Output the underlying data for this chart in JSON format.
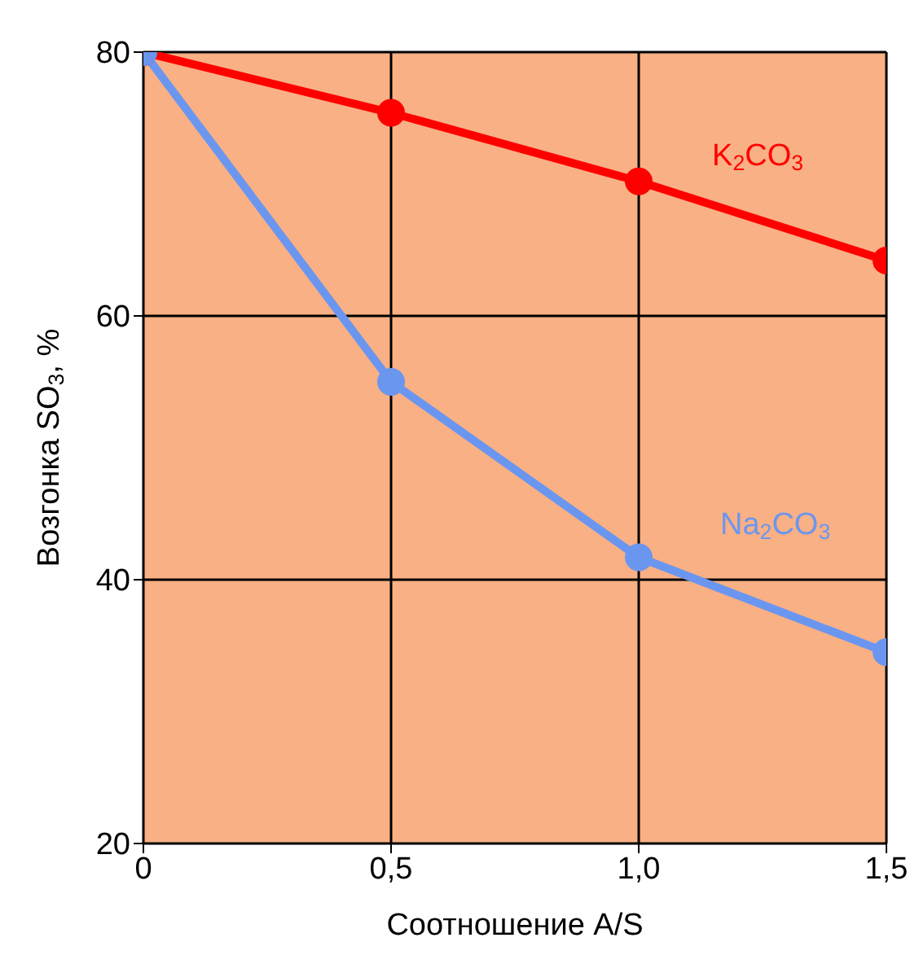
{
  "chart_data": {
    "type": "line",
    "xlabel": "Соотношение A/S",
    "ylabel": "Возгонка SO$_{3}$, %",
    "x": [
      0,
      0.5,
      1,
      1.5
    ],
    "series": [
      {
        "name": "K$_{2}$CO$_{3}$",
        "color": "#ff0000",
        "values": [
          80,
          75.4,
          70.2,
          64.2
        ]
      },
      {
        "name": "Na$_{2}$CO$_{3}$",
        "color": "#6b96f0",
        "values": [
          80,
          55,
          41.7,
          34.5
        ]
      }
    ],
    "xlim": [
      0,
      1.5
    ],
    "xticks": [
      0,
      {
        "value": 0.5,
        "label": "0,5"
      },
      {
        "value": 1,
        "label": "1,0"
      },
      {
        "value": 1.5,
        "label": "1,5"
      }
    ],
    "ylim": [
      20,
      80
    ],
    "yticks": [
      20,
      40,
      60,
      80
    ],
    "grid": true,
    "legend": false,
    "marker": "circle",
    "line_style": "solid"
  }
}
